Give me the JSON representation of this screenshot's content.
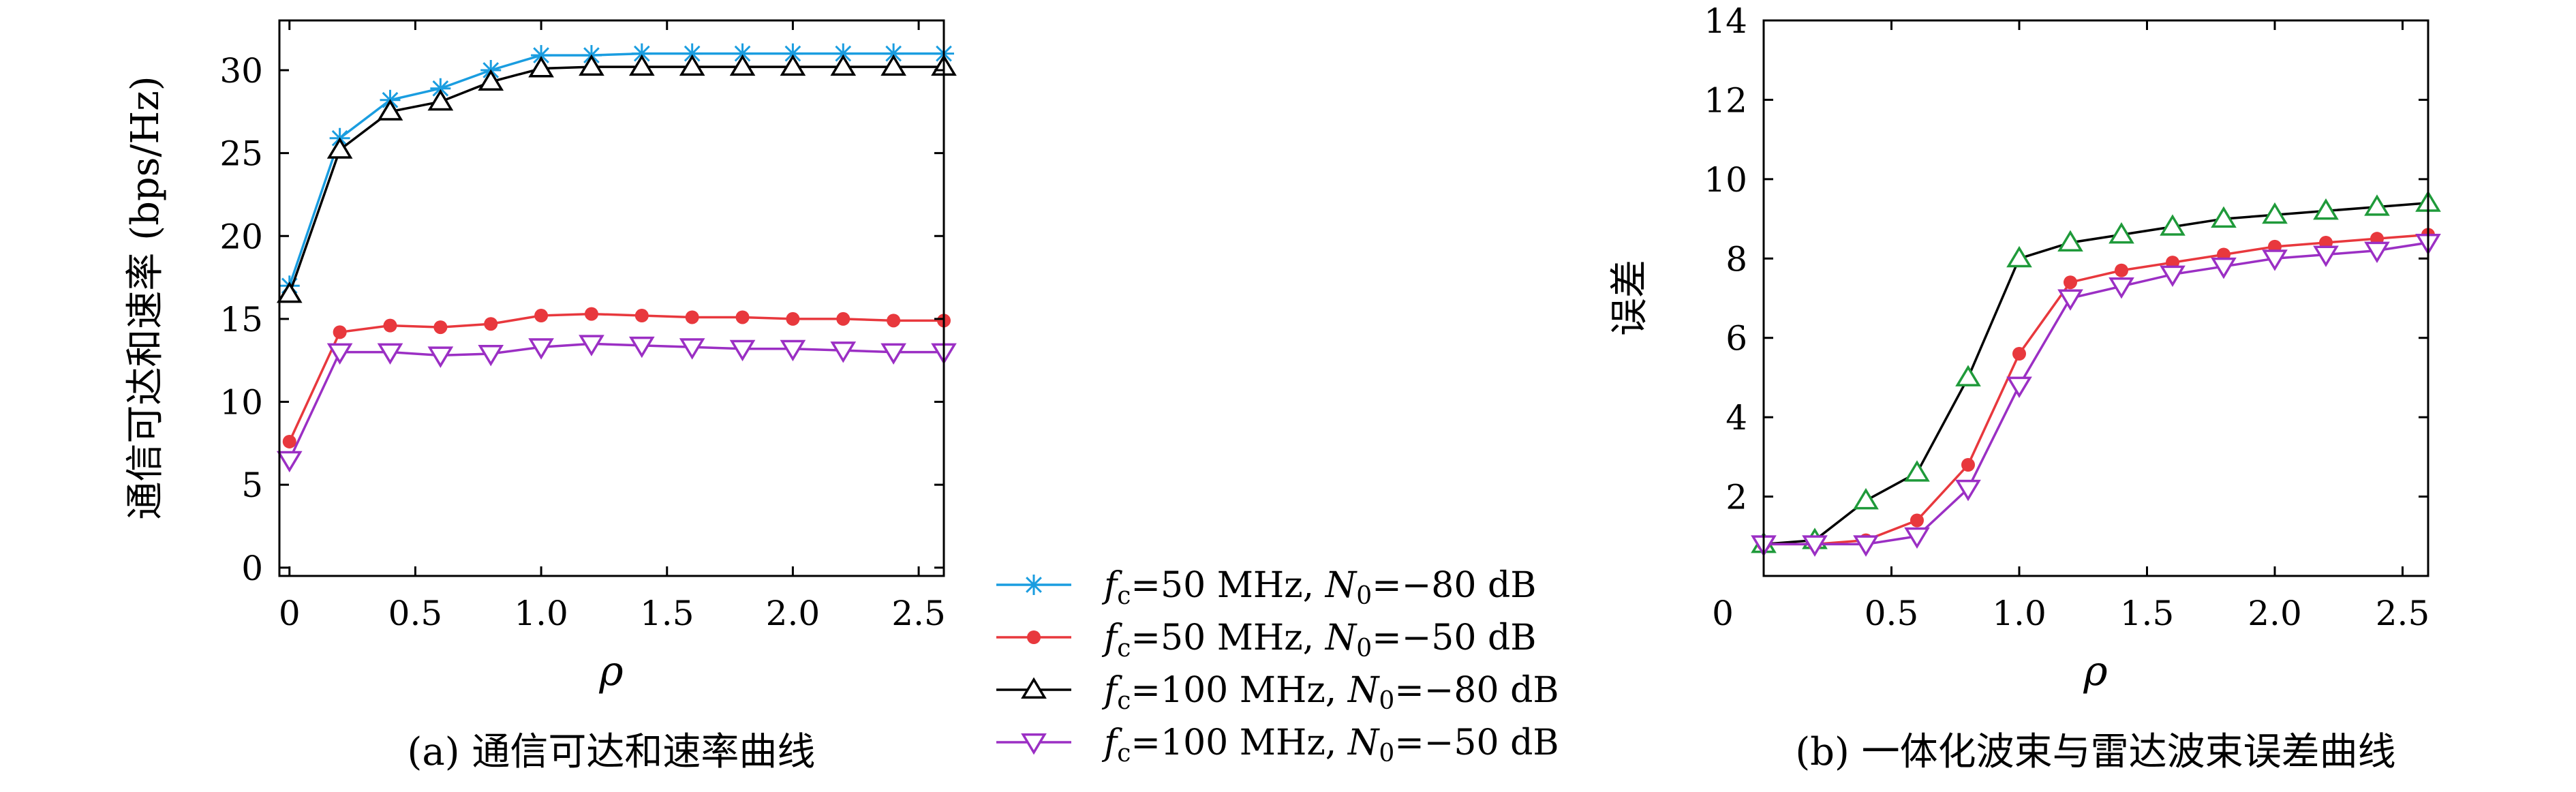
{
  "legend": {
    "entries": [
      {
        "prefix": "f",
        "sub": "c",
        "mid": "=50 MHz, ",
        "n": "N",
        "nsub": "0",
        "suffix": "=−80 dB",
        "color": "#1a9de0",
        "marker": "star"
      },
      {
        "prefix": "f",
        "sub": "c",
        "mid": "=50 MHz, ",
        "n": "N",
        "nsub": "0",
        "suffix": "=−50 dB",
        "color": "#e8383d",
        "marker": "dot"
      },
      {
        "prefix": "f",
        "sub": "c",
        "mid": "=100 MHz, ",
        "n": "N",
        "nsub": "0",
        "suffix": "=−80 dB",
        "color": "#000000",
        "marker": "triangle-up"
      },
      {
        "prefix": "f",
        "sub": "c",
        "mid": "=100 MHz, ",
        "n": "N",
        "nsub": "0",
        "suffix": "=−50 dB",
        "color": "#9b2fc4",
        "marker": "triangle-down"
      }
    ]
  },
  "chart_data": [
    {
      "type": "line",
      "caption": "(a) 通信可达和速率曲线",
      "xlabel": "ρ",
      "ylabel": "通信可达和速率 (bps/Hz)",
      "xlim": [
        -0.04,
        2.6
      ],
      "ylim": [
        -0.5,
        33
      ],
      "x_ticks": [
        0,
        0.5,
        1.0,
        1.5,
        2.0,
        2.5
      ],
      "x_tick_labels": [
        "0",
        "0.5",
        "1.0",
        "1.5",
        "2.0",
        "2.5"
      ],
      "y_ticks": [
        0,
        5,
        10,
        15,
        20,
        25,
        30
      ],
      "y_tick_labels": [
        "0",
        "5",
        "10",
        "15",
        "20",
        "25",
        "30"
      ],
      "x": [
        0,
        0.2,
        0.4,
        0.6,
        0.8,
        1.0,
        1.2,
        1.4,
        1.6,
        1.8,
        2.0,
        2.2,
        2.4,
        2.6
      ],
      "series": [
        {
          "values": [
            17.0,
            25.9,
            28.2,
            28.9,
            30.0,
            30.9,
            30.9,
            31.0,
            31.0,
            31.0,
            31.0,
            31.0,
            31.0,
            31.0
          ]
        },
        {
          "values": [
            7.6,
            14.2,
            14.6,
            14.5,
            14.7,
            15.2,
            15.3,
            15.2,
            15.1,
            15.1,
            15.0,
            15.0,
            14.9,
            14.9
          ]
        },
        {
          "values": [
            16.5,
            25.2,
            27.5,
            28.1,
            29.3,
            30.1,
            30.2,
            30.2,
            30.2,
            30.2,
            30.2,
            30.2,
            30.2,
            30.2
          ]
        },
        {
          "values": [
            6.5,
            13.0,
            13.0,
            12.8,
            12.9,
            13.3,
            13.5,
            13.4,
            13.3,
            13.2,
            13.2,
            13.1,
            13.0,
            13.0
          ]
        }
      ]
    },
    {
      "type": "line",
      "caption": "(b) 一体化波束与雷达波束误差曲线",
      "xlabel": "ρ",
      "ylabel": "误差",
      "xlim": [
        0,
        2.6
      ],
      "ylim": [
        0,
        14
      ],
      "x_ticks": [
        0.5,
        1.0,
        1.5,
        2.0,
        2.5
      ],
      "x_tick_labels": [
        "0.5",
        "1.0",
        "1.5",
        "2.0",
        "2.5"
      ],
      "x_origin_label": "0",
      "y_ticks": [
        2,
        4,
        6,
        8,
        10,
        12,
        14
      ],
      "y_tick_labels": [
        "2",
        "4",
        "6",
        "8",
        "10",
        "12",
        "14"
      ],
      "x": [
        0,
        0.2,
        0.4,
        0.6,
        0.8,
        1.0,
        1.2,
        1.4,
        1.6,
        1.8,
        2.0,
        2.2,
        2.4,
        2.6
      ],
      "series": [
        {
          "values": [
            0.8,
            0.9,
            1.9,
            2.6,
            5.0,
            8.0,
            8.4,
            8.6,
            8.8,
            9.0,
            9.1,
            9.2,
            9.3,
            9.4
          ],
          "color": "#000000",
          "marker": "triangle-up-green"
        },
        {
          "values": [
            0.8,
            0.8,
            0.9,
            1.4,
            2.8,
            5.6,
            7.4,
            7.7,
            7.9,
            8.1,
            8.3,
            8.4,
            8.5,
            8.6
          ],
          "color": "#e8383d",
          "marker": "dot"
        },
        {
          "values": [
            0.8,
            0.8,
            0.8,
            1.0,
            2.2,
            4.8,
            7.0,
            7.3,
            7.6,
            7.8,
            8.0,
            8.1,
            8.2,
            8.4
          ],
          "color": "#9b2fc4",
          "marker": "triangle-down"
        }
      ]
    }
  ]
}
